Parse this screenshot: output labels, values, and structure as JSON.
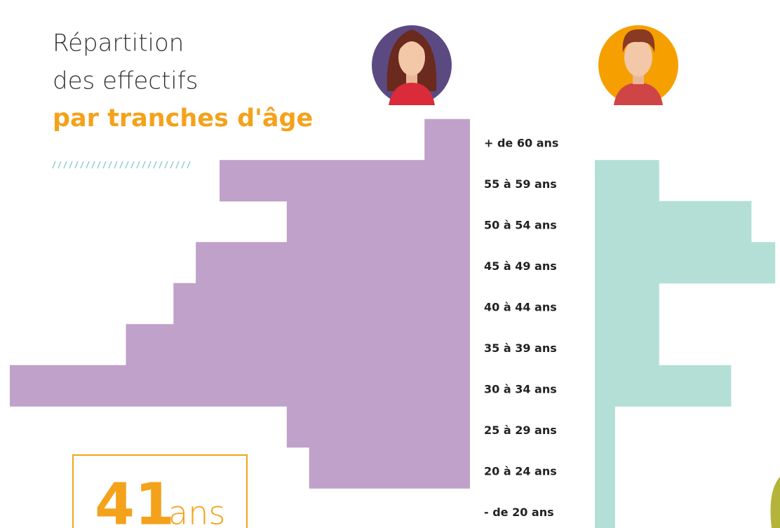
{
  "chart_data": {
    "type": "pyramid",
    "title": [
      "Répartition",
      "des effectifs",
      "par tranches d'âge"
    ],
    "categories": [
      "+ de 60 ans",
      "55 à 59 ans",
      "50 à 54 ans",
      "45 à 49 ans",
      "40 à 44 ans",
      "35 à 39 ans",
      "30 à 34 ans",
      "25 à 29 ans",
      "20 à 24 ans",
      "- de 20 ans"
    ],
    "series": [
      {
        "color": "#bfa1c9",
        "values": [
          65,
          358,
          262,
          392,
          424,
          492,
          658,
          262,
          230,
          0
        ]
      },
      {
        "color": "#b3dfd6",
        "values": [
          0,
          92,
          224,
          258,
          92,
          92,
          195,
          29,
          29,
          29
        ]
      }
    ],
    "xlim": [
      0,
      660
    ],
    "annotation": {
      "value": 41,
      "unit": "ans"
    },
    "accent_color": "#f4a21b"
  }
}
